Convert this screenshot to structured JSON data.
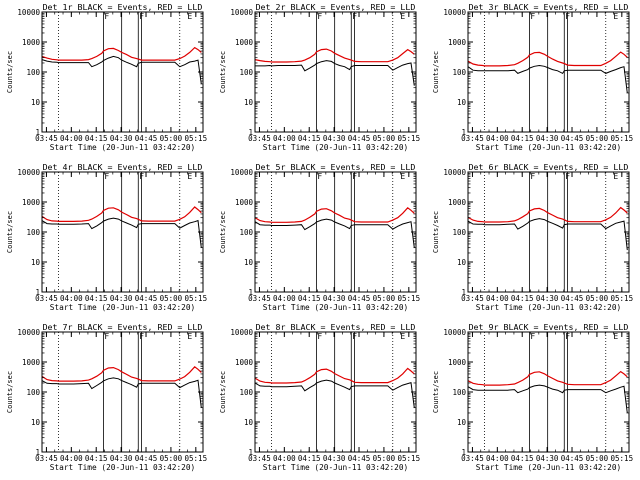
{
  "figure": {
    "panels": [
      {
        "title": "Det 1r BLACK = Events, RED = LLD",
        "xlabel": "Start Time (20-Jun-11 03:42:20)",
        "ylabel": "Counts/sec"
      },
      {
        "title": "Det 2r BLACK = Events, RED = LLD",
        "xlabel": "Start Time (20-Jun-11 03:42:20)",
        "ylabel": "Counts/sec"
      },
      {
        "title": "Det 3r BLACK = Events, RED = LLD",
        "xlabel": "Start Time (20-Jun-11 03:42:20)",
        "ylabel": "Counts/sec"
      },
      {
        "title": "Det 4r BLACK = Events, RED = LLD",
        "xlabel": "Start Time (20-Jun-11 03:42:20)",
        "ylabel": "Counts/sec"
      },
      {
        "title": "Det 5r BLACK = Events, RED = LLD",
        "xlabel": "Start Time (20-Jun-11 03:42:20)",
        "ylabel": "Counts/sec"
      },
      {
        "title": "Det 6r BLACK = Events, RED = LLD",
        "xlabel": "Start Time (20-Jun-11 03:42:20)",
        "ylabel": "Counts/sec"
      },
      {
        "title": "Det 7r BLACK = Events, RED = LLD",
        "xlabel": "Start Time (20-Jun-11 03:42:20)",
        "ylabel": "Counts/sec"
      },
      {
        "title": "Det 8r BLACK = Events, RED = LLD",
        "xlabel": "Start Time (20-Jun-11 03:42:20)",
        "ylabel": "Counts/sec"
      },
      {
        "title": "Det 9r BLACK = Events, RED = LLD",
        "xlabel": "Start Time (20-Jun-11 03:42:20)",
        "ylabel": "Counts/sec"
      }
    ]
  },
  "chart_data": {
    "type": "line",
    "layout": "3x3 small multiples",
    "x_tick_labels": [
      "03:45",
      "04:00",
      "04:15",
      "04:30",
      "04:45",
      "05:00",
      "05:15"
    ],
    "x_ticks_min_from_start": [
      2.67,
      17.67,
      32.67,
      47.67,
      62.67,
      77.67,
      92.67
    ],
    "xlim_min_from_start": [
      0,
      97
    ],
    "y_tick_labels": [
      "1",
      "10",
      "100",
      "1000",
      "10000"
    ],
    "y_ticks": [
      1,
      10,
      100,
      1000,
      10000
    ],
    "ylim": [
      1,
      10000
    ],
    "y_scale": "log",
    "colors": {
      "events": "#000000",
      "lld": "#e00000",
      "axes": "#000000"
    },
    "vertical_dotted_lines_min": [
      10,
      83
    ],
    "vertical_solid_lines_min": [
      37,
      48,
      58,
      60
    ],
    "flag_markers": [
      {
        "label": "F",
        "x_min": 37
      },
      {
        "label": "F",
        "x_min": 58
      },
      {
        "label": "E",
        "x_min": 87
      }
    ],
    "series_x_min": [
      0,
      3,
      6,
      9,
      10,
      14,
      19,
      24,
      28,
      30,
      33,
      36,
      37,
      40,
      43,
      46,
      48,
      51,
      54,
      57,
      58,
      60,
      64,
      70,
      76,
      80,
      83,
      86,
      89,
      92,
      94,
      96
    ],
    "series": [
      {
        "panel": 1,
        "events": [
          260,
          230,
          215,
          210,
          205,
          205,
          205,
          205,
          205,
          150,
          175,
          215,
          240,
          290,
          330,
          300,
          250,
          210,
          180,
          150,
          195,
          210,
          210,
          210,
          210,
          210,
          150,
          175,
          215,
          230,
          250,
          40
        ],
        "lld": [
          330,
          290,
          265,
          255,
          250,
          250,
          250,
          250,
          260,
          280,
          330,
          420,
          500,
          600,
          610,
          520,
          450,
          380,
          310,
          280,
          270,
          250,
          250,
          250,
          250,
          250,
          280,
          340,
          450,
          650,
          560,
          450
        ]
      },
      {
        "panel": 2,
        "events": [
          160,
          160,
          160,
          165,
          160,
          165,
          165,
          165,
          170,
          110,
          135,
          170,
          190,
          220,
          240,
          225,
          190,
          165,
          150,
          120,
          150,
          165,
          165,
          165,
          165,
          165,
          115,
          140,
          170,
          190,
          200,
          35
        ],
        "lld": [
          260,
          240,
          225,
          220,
          215,
          215,
          215,
          220,
          230,
          250,
          300,
          390,
          470,
          560,
          580,
          500,
          420,
          350,
          290,
          260,
          250,
          225,
          220,
          220,
          220,
          220,
          250,
          300,
          410,
          560,
          480,
          390
        ]
      },
      {
        "panel": 3,
        "events": [
          150,
          115,
          110,
          110,
          110,
          110,
          110,
          110,
          115,
          90,
          105,
          120,
          135,
          155,
          165,
          155,
          140,
          120,
          110,
          90,
          110,
          115,
          115,
          115,
          115,
          115,
          90,
          105,
          120,
          140,
          150,
          20
        ],
        "lld": [
          230,
          185,
          170,
          165,
          160,
          160,
          160,
          165,
          175,
          195,
          240,
          310,
          370,
          440,
          450,
          390,
          330,
          270,
          225,
          200,
          190,
          170,
          165,
          165,
          165,
          165,
          195,
          240,
          330,
          460,
          390,
          310
        ]
      },
      {
        "panel": 4,
        "events": [
          240,
          190,
          185,
          185,
          180,
          180,
          180,
          185,
          190,
          130,
          160,
          205,
          230,
          270,
          290,
          270,
          235,
          200,
          170,
          140,
          180,
          190,
          190,
          190,
          190,
          190,
          135,
          165,
          200,
          220,
          240,
          30
        ],
        "lld": [
          330,
          260,
          235,
          230,
          225,
          225,
          225,
          230,
          245,
          270,
          330,
          430,
          520,
          620,
          640,
          550,
          460,
          380,
          310,
          280,
          265,
          235,
          230,
          230,
          230,
          230,
          265,
          320,
          450,
          680,
          560,
          440
        ]
      },
      {
        "panel": 5,
        "events": [
          220,
          175,
          170,
          170,
          165,
          165,
          165,
          170,
          175,
          120,
          150,
          190,
          215,
          250,
          270,
          250,
          215,
          185,
          160,
          130,
          165,
          175,
          175,
          175,
          175,
          175,
          125,
          155,
          185,
          205,
          220,
          30
        ],
        "lld": [
          300,
          240,
          220,
          215,
          210,
          210,
          210,
          215,
          225,
          250,
          310,
          400,
          490,
          580,
          600,
          510,
          430,
          360,
          290,
          265,
          250,
          220,
          215,
          215,
          215,
          215,
          250,
          300,
          420,
          640,
          530,
          420
        ]
      },
      {
        "panel": 6,
        "events": [
          230,
          185,
          180,
          180,
          175,
          175,
          175,
          180,
          185,
          125,
          155,
          200,
          225,
          260,
          280,
          260,
          225,
          195,
          165,
          135,
          175,
          185,
          185,
          185,
          185,
          185,
          130,
          160,
          195,
          215,
          230,
          25
        ],
        "lld": [
          310,
          250,
          225,
          220,
          215,
          215,
          215,
          220,
          235,
          260,
          320,
          410,
          500,
          590,
          610,
          520,
          440,
          365,
          300,
          270,
          255,
          225,
          220,
          220,
          220,
          220,
          255,
          310,
          430,
          650,
          540,
          430
        ]
      },
      {
        "panel": 7,
        "events": [
          240,
          195,
          190,
          190,
          185,
          185,
          185,
          190,
          195,
          130,
          165,
          210,
          235,
          275,
          295,
          275,
          240,
          205,
          175,
          145,
          185,
          195,
          195,
          195,
          195,
          195,
          140,
          170,
          205,
          225,
          245,
          30
        ],
        "lld": [
          330,
          260,
          240,
          235,
          230,
          230,
          230,
          235,
          250,
          275,
          335,
          440,
          530,
          630,
          650,
          560,
          470,
          385,
          315,
          285,
          270,
          240,
          235,
          235,
          235,
          235,
          270,
          325,
          455,
          690,
          570,
          450
        ]
      },
      {
        "panel": 8,
        "events": [
          200,
          160,
          155,
          155,
          150,
          150,
          150,
          155,
          160,
          110,
          140,
          175,
          200,
          230,
          250,
          230,
          200,
          170,
          145,
          120,
          150,
          160,
          160,
          160,
          160,
          160,
          115,
          140,
          170,
          190,
          205,
          30
        ],
        "lld": [
          290,
          230,
          210,
          205,
          200,
          200,
          200,
          205,
          215,
          240,
          300,
          390,
          470,
          560,
          580,
          490,
          410,
          340,
          280,
          255,
          240,
          210,
          205,
          205,
          205,
          205,
          240,
          290,
          400,
          610,
          500,
          400
        ]
      },
      {
        "panel": 9,
        "events": [
          150,
          120,
          115,
          115,
          115,
          115,
          115,
          115,
          120,
          95,
          110,
          125,
          140,
          160,
          170,
          160,
          145,
          125,
          115,
          95,
          115,
          120,
          120,
          120,
          120,
          120,
          95,
          110,
          125,
          145,
          155,
          20
        ],
        "lld": [
          240,
          195,
          180,
          175,
          170,
          170,
          170,
          175,
          185,
          205,
          250,
          320,
          385,
          455,
          470,
          405,
          345,
          285,
          235,
          210,
          200,
          180,
          175,
          175,
          175,
          175,
          205,
          250,
          345,
          480,
          400,
          320
        ]
      }
    ]
  }
}
